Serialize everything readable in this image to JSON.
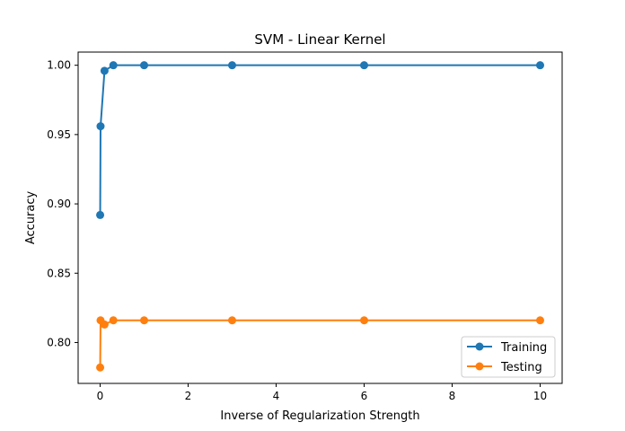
{
  "chart_data": {
    "type": "line",
    "title": "SVM - Linear Kernel",
    "xlabel": "Inverse of Regularization Strength",
    "ylabel": "Accuracy",
    "xlim": [
      -0.5,
      10.5
    ],
    "ylim": [
      0.7705,
      1.0095
    ],
    "xticks": [
      0,
      2,
      4,
      6,
      8,
      10
    ],
    "yticks": [
      0.8,
      0.85,
      0.9,
      0.95,
      1.0
    ],
    "x": [
      0.001,
      0.01,
      0.1,
      0.3,
      1,
      3,
      6,
      10
    ],
    "series": [
      {
        "name": "Training",
        "color": "#1f77b4",
        "values": [
          0.892,
          0.956,
          0.996,
          1.0,
          1.0,
          1.0,
          1.0,
          1.0
        ]
      },
      {
        "name": "Testing",
        "color": "#ff7f0e",
        "values": [
          0.782,
          0.816,
          0.813,
          0.816,
          0.816,
          0.816,
          0.816,
          0.816
        ]
      }
    ],
    "grid": false,
    "legend_position": "lower-right"
  }
}
